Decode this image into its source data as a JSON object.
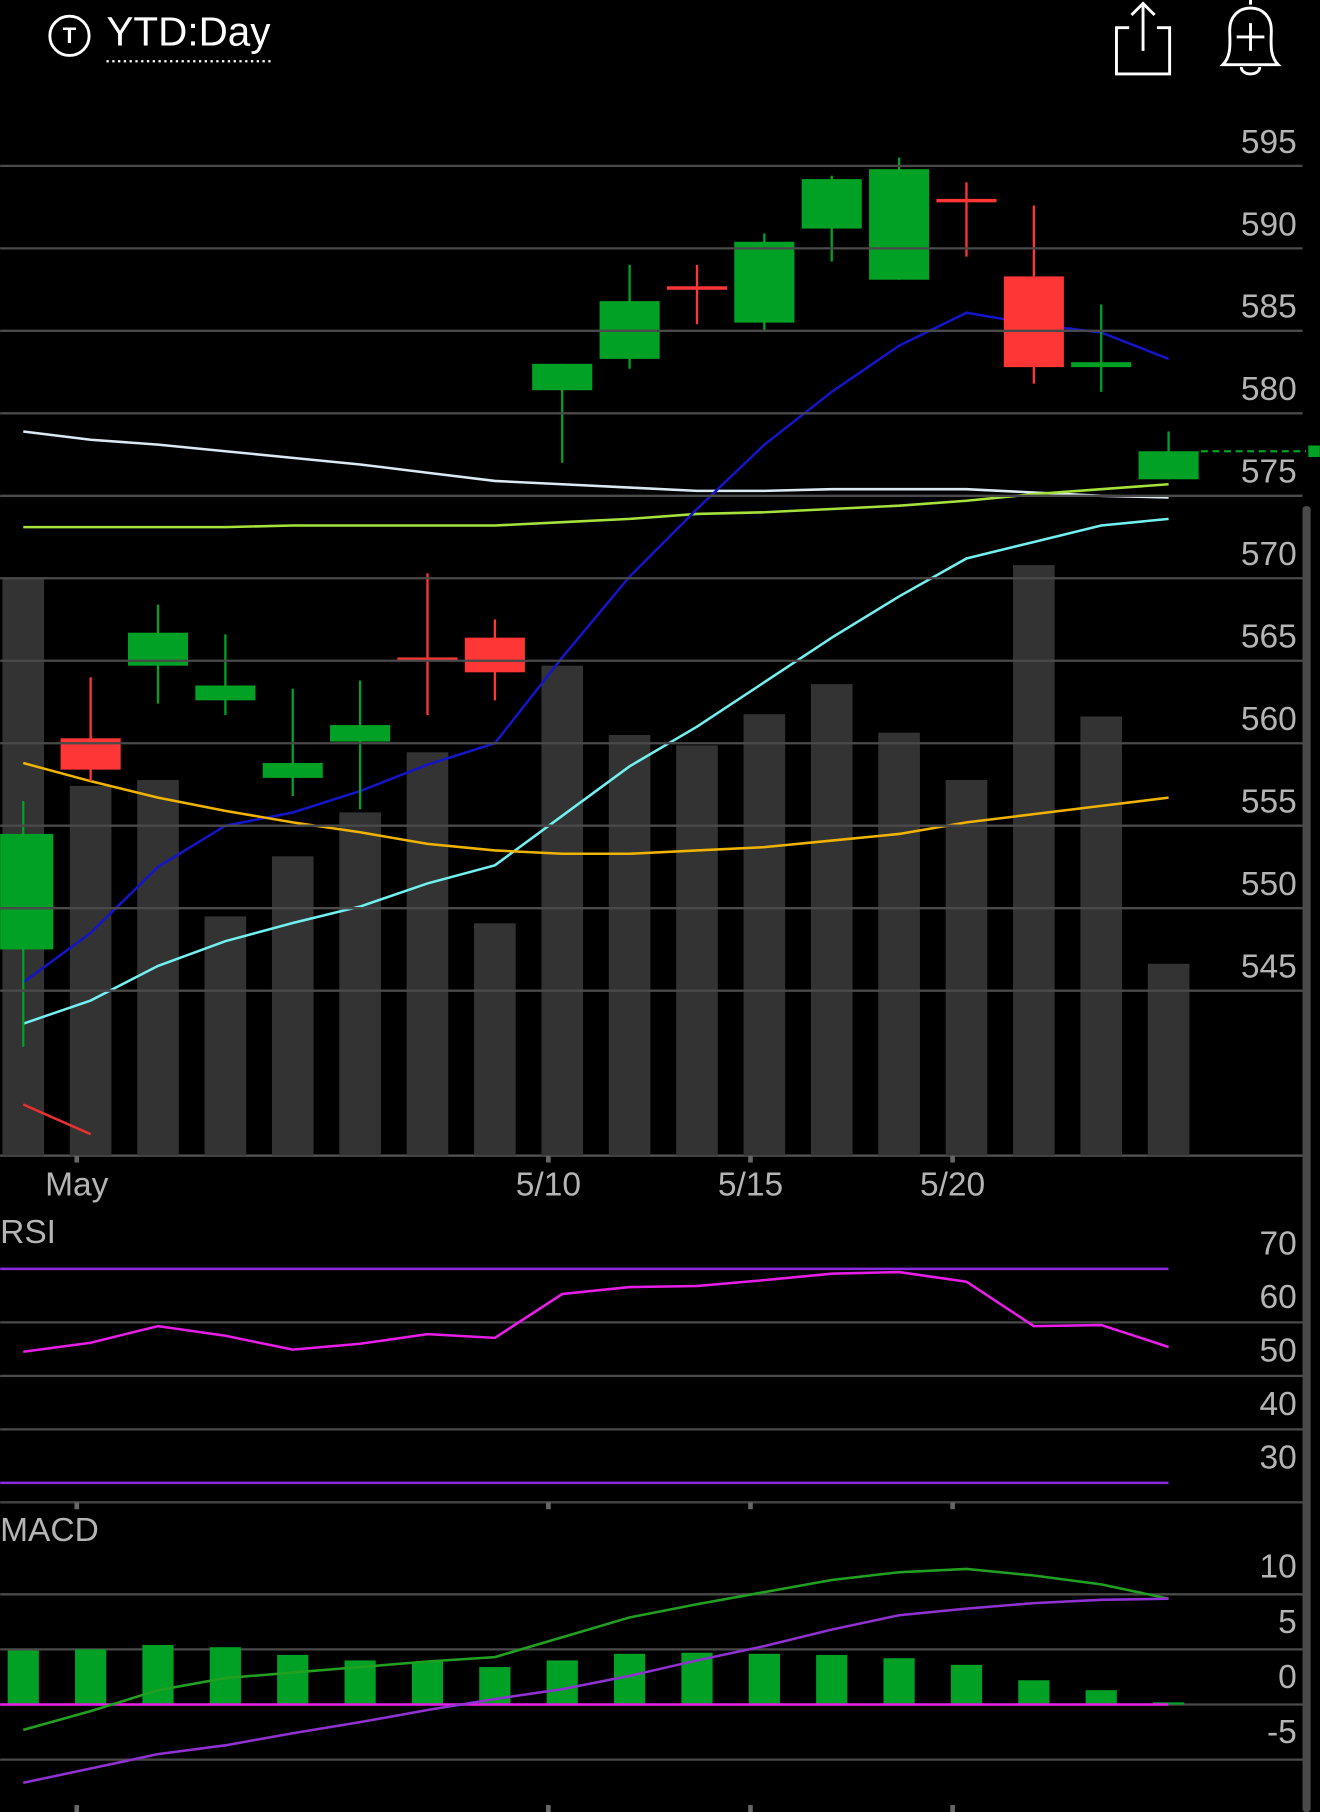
{
  "header": {
    "icon_letter": "T",
    "title": "YTD:Day"
  },
  "chart_data": [
    {
      "type": "candlestick",
      "categories": [
        null,
        "May",
        null,
        null,
        null,
        null,
        null,
        null,
        "5/10",
        null,
        null,
        "5/15",
        null,
        null,
        "5/20",
        null,
        null,
        null
      ],
      "open": [
        547.5,
        560.3,
        564.7,
        562.6,
        557.9,
        560.1,
        565.2,
        566.4,
        581.4,
        583.3,
        587.7,
        585.5,
        591.2,
        588.1,
        593.0,
        588.3,
        582.8,
        576.0
      ],
      "high": [
        556.5,
        564.0,
        568.4,
        566.6,
        563.3,
        563.8,
        570.3,
        567.5,
        583.0,
        589.0,
        589.0,
        590.9,
        594.4,
        595.5,
        594.0,
        592.6,
        586.6,
        578.9
      ],
      "low": [
        541.6,
        557.7,
        562.4,
        561.7,
        556.8,
        556.0,
        561.7,
        562.6,
        577.0,
        582.7,
        585.4,
        585.0,
        589.2,
        588.1,
        589.5,
        581.8,
        581.3,
        576.0
      ],
      "close": [
        554.5,
        558.4,
        566.7,
        563.5,
        558.8,
        561.1,
        565.0,
        564.3,
        583.0,
        586.8,
        587.5,
        590.4,
        594.2,
        594.8,
        592.9,
        582.8,
        583.1,
        577.7
      ],
      "up_color": "#00a125",
      "down_color": "#ff3636",
      "series": [
        {
          "color": "#dbe9f2",
          "values": [
            578.9,
            578.4,
            578.1,
            577.7,
            577.3,
            576.9,
            576.4,
            575.9,
            575.7,
            575.5,
            575.3,
            575.3,
            575.4,
            575.4,
            575.4,
            575.2,
            575.0,
            574.9
          ]
        },
        {
          "color": "#a6e23c",
          "values": [
            573.1,
            573.1,
            573.1,
            573.1,
            573.2,
            573.2,
            573.2,
            573.2,
            573.4,
            573.6,
            573.9,
            574.0,
            574.2,
            574.4,
            574.7,
            575.1,
            575.4,
            575.7
          ]
        },
        {
          "color": "#1414c8",
          "values": [
            545.5,
            548.5,
            552.5,
            555.0,
            555.8,
            557.1,
            558.7,
            560.0,
            565.2,
            570.1,
            574.2,
            578.1,
            581.3,
            584.1,
            586.1,
            585.4,
            584.9,
            583.3
          ]
        },
        {
          "color": "#72f0f0",
          "values": [
            543.0,
            544.4,
            546.5,
            548.0,
            549.1,
            550.1,
            551.5,
            552.6,
            555.6,
            558.6,
            561.0,
            563.7,
            566.4,
            568.9,
            571.2,
            572.2,
            573.2,
            573.6
          ]
        },
        {
          "color": "#f0b400",
          "values": [
            558.8,
            557.7,
            556.7,
            555.9,
            555.2,
            554.6,
            553.9,
            553.5,
            553.3,
            553.3,
            553.5,
            553.7,
            554.1,
            554.5,
            555.2,
            555.7,
            556.2,
            556.7
          ]
        },
        {
          "color": "#e83030",
          "values": [
            538.1,
            536.3,
            null,
            null,
            null,
            null,
            null,
            null,
            null,
            null,
            null,
            null,
            null,
            null,
            null,
            null,
            null,
            null
          ]
        }
      ],
      "volume": {
        "color": "#333333",
        "values": [
          499,
          320,
          325,
          207,
          259,
          297,
          349,
          201,
          424,
          364,
          355,
          382,
          408,
          366,
          325,
          511,
          380,
          166
        ],
        "vlim": [
          0,
          850
        ]
      },
      "ylim": [
        535,
        597
      ],
      "yticks": [
        545,
        550,
        555,
        560,
        565,
        570,
        575,
        580,
        585,
        590,
        595
      ],
      "grid": true
    },
    {
      "type": "line",
      "title": "RSI",
      "series": [
        {
          "color": "#e81ee8",
          "values": [
            54.5,
            56.2,
            59.3,
            57.5,
            54.9,
            56.0,
            57.8,
            57.1,
            65.3,
            66.6,
            66.8,
            67.9,
            69.1,
            69.4,
            67.6,
            59.3,
            59.5,
            55.4
          ]
        }
      ],
      "levels": [
        70,
        30
      ],
      "level_color": "#8a2be2",
      "ylim": [
        25,
        75
      ],
      "yticks": [
        30,
        40,
        50,
        60,
        70
      ],
      "grid": true
    },
    {
      "type": "macd",
      "title": "MACD",
      "histogram": {
        "color": "#00a125",
        "values": [
          4.9,
          5.0,
          5.4,
          5.2,
          4.5,
          4.0,
          3.9,
          3.4,
          4.0,
          4.6,
          4.7,
          4.6,
          4.5,
          4.2,
          3.6,
          2.2,
          1.3,
          0.2
        ]
      },
      "series": [
        {
          "color": "#22a022",
          "values": [
            -2.3,
            -0.6,
            1.3,
            2.4,
            2.9,
            3.4,
            3.9,
            4.3,
            6.1,
            7.9,
            9.1,
            10.2,
            11.3,
            12.0,
            12.3,
            11.7,
            10.9,
            9.6
          ]
        },
        {
          "color": "#9032d2",
          "values": [
            -7.1,
            -5.8,
            -4.5,
            -3.7,
            -2.6,
            -1.6,
            -0.5,
            0.5,
            1.4,
            2.6,
            4.0,
            5.3,
            6.8,
            8.1,
            8.7,
            9.2,
            9.5,
            9.6
          ]
        }
      ],
      "zero_color": "#e81ee8",
      "ylim": [
        -10,
        17
      ],
      "yticks": [
        -5,
        0,
        5,
        10
      ],
      "grid": true
    }
  ]
}
